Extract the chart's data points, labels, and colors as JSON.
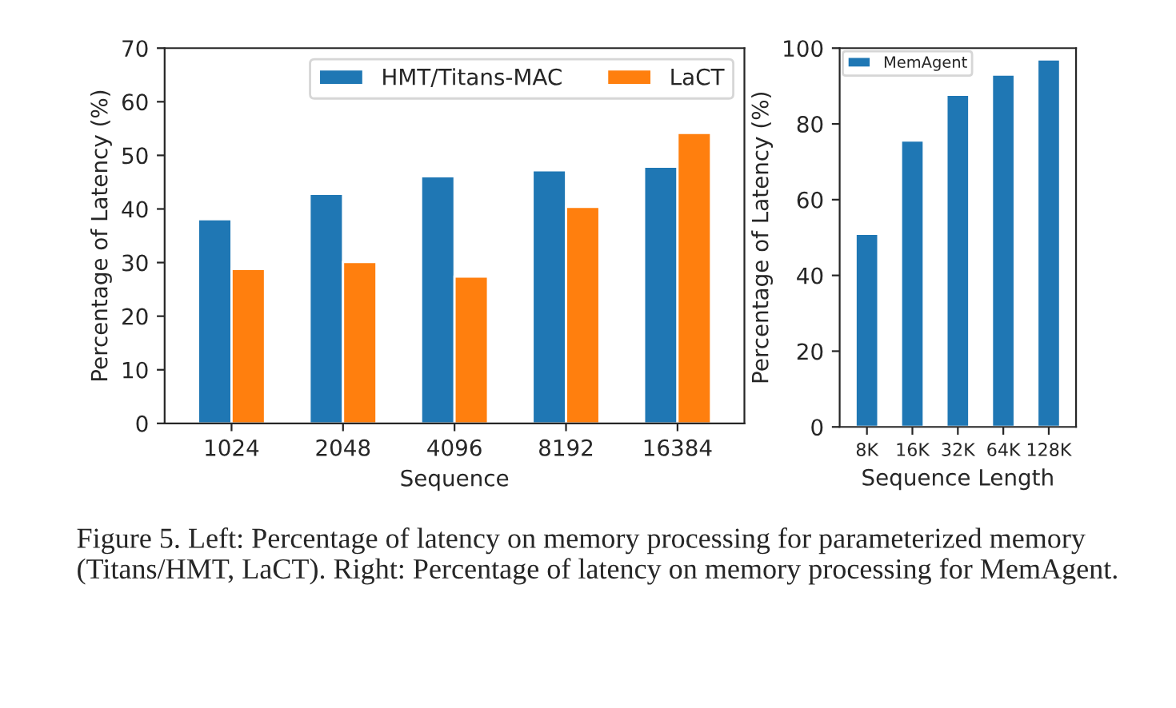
{
  "chart_data": [
    {
      "type": "bar",
      "categories": [
        "1024",
        "2048",
        "4096",
        "8192",
        "16384"
      ],
      "xlabel": "Sequence",
      "ylabel": "Percentage of Latency (%)",
      "ylim": [
        0,
        70
      ],
      "yticks": [
        0,
        10,
        20,
        30,
        40,
        50,
        60,
        70
      ],
      "grid": false,
      "legend": "top right",
      "series": [
        {
          "name": "HMT/Titans-MAC",
          "color": "#1f77b4",
          "values": [
            38.1,
            42.8,
            46.1,
            47.2,
            47.9
          ]
        },
        {
          "name": "LaCT",
          "color": "#ff7f0e",
          "values": [
            28.8,
            30.1,
            27.4,
            40.4,
            54.2
          ]
        }
      ],
      "annotations": [
        "Figure 5. Left: Percentage of latency on memory processing for parameterized memory (Titans/HMT, LaCT). Right: Percentage of latency on memory processing for MemAgent."
      ]
    },
    {
      "type": "bar",
      "categories": [
        "8K",
        "16K",
        "32K",
        "64K",
        "128K"
      ],
      "xlabel": "Sequence Length",
      "ylabel": "Percentage of Latency (%)",
      "ylim": [
        0,
        100
      ],
      "yticks": [
        0,
        20,
        40,
        60,
        80,
        100
      ],
      "grid": false,
      "legend": "top left",
      "series": [
        {
          "name": "MemAgent",
          "color": "#1f77b4",
          "values": [
            51.0,
            75.6,
            87.7,
            93.0,
            97.0
          ]
        }
      ]
    }
  ]
}
